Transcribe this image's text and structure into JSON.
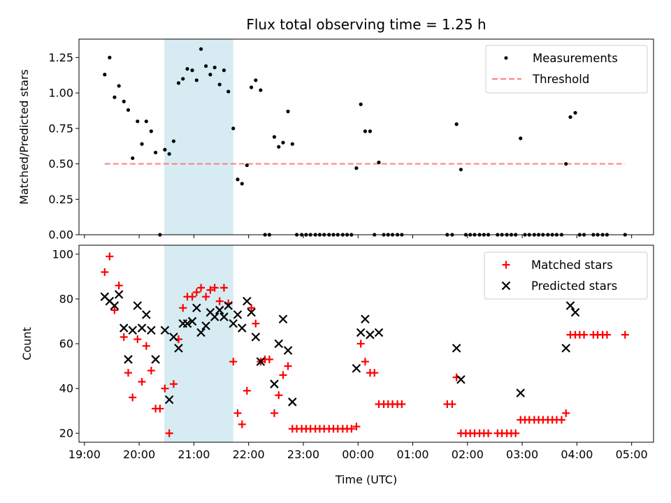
{
  "chart_data": [
    {
      "type": "scatter",
      "title": "Flux total observing time = 1.25 h",
      "xlabel": "",
      "ylabel": "Matched/Predicted stars",
      "xlim": [
        18.9,
        29.4
      ],
      "ylim": [
        0,
        1.38
      ],
      "yticks": [
        0,
        0.25,
        0.5,
        0.75,
        1.0,
        1.25
      ],
      "ytick_labels": [
        "0.00",
        "0.25",
        "0.50",
        "0.75",
        "1.00",
        "1.25"
      ],
      "highlight_span": [
        20.46,
        21.72
      ],
      "highlight_color": "#add8e6",
      "series": [
        {
          "name": "Measurements",
          "color": "#000000",
          "marker": "dot",
          "points": [
            [
              19.37,
              1.13
            ],
            [
              19.46,
              1.25
            ],
            [
              19.55,
              0.97
            ],
            [
              19.63,
              1.05
            ],
            [
              19.72,
              0.94
            ],
            [
              19.8,
              0.88
            ],
            [
              19.88,
              0.54
            ],
            [
              19.97,
              0.8
            ],
            [
              20.05,
              0.64
            ],
            [
              20.13,
              0.8
            ],
            [
              20.22,
              0.73
            ],
            [
              20.3,
              0.58
            ],
            [
              20.38,
              0.0
            ],
            [
              20.47,
              0.6
            ],
            [
              20.55,
              0.57
            ],
            [
              20.63,
              0.66
            ],
            [
              20.72,
              1.07
            ],
            [
              20.8,
              1.1
            ],
            [
              20.88,
              1.17
            ],
            [
              20.97,
              1.16
            ],
            [
              21.05,
              1.09
            ],
            [
              21.13,
              1.31
            ],
            [
              21.22,
              1.19
            ],
            [
              21.3,
              1.13
            ],
            [
              21.38,
              1.18
            ],
            [
              21.47,
              1.06
            ],
            [
              21.55,
              1.16
            ],
            [
              21.63,
              1.01
            ],
            [
              21.72,
              0.75
            ],
            [
              21.8,
              0.39
            ],
            [
              21.88,
              0.36
            ],
            [
              21.97,
              0.49
            ],
            [
              22.05,
              1.04
            ],
            [
              22.13,
              1.09
            ],
            [
              22.22,
              1.02
            ],
            [
              22.3,
              0.0
            ],
            [
              22.38,
              0.0
            ],
            [
              22.47,
              0.69
            ],
            [
              22.55,
              0.62
            ],
            [
              22.63,
              0.65
            ],
            [
              22.72,
              0.87
            ],
            [
              22.8,
              0.64
            ],
            [
              22.88,
              0.0
            ],
            [
              22.97,
              0.0
            ],
            [
              23.05,
              0.0
            ],
            [
              23.13,
              0.0
            ],
            [
              23.22,
              0.0
            ],
            [
              23.3,
              0.0
            ],
            [
              23.38,
              0.0
            ],
            [
              23.47,
              0.0
            ],
            [
              23.55,
              0.0
            ],
            [
              23.63,
              0.0
            ],
            [
              23.72,
              0.0
            ],
            [
              23.8,
              0.0
            ],
            [
              23.88,
              0.0
            ],
            [
              23.97,
              0.47
            ],
            [
              24.05,
              0.92
            ],
            [
              24.13,
              0.73
            ],
            [
              24.22,
              0.73
            ],
            [
              24.3,
              0.0
            ],
            [
              24.38,
              0.51
            ],
            [
              24.47,
              0.0
            ],
            [
              24.55,
              0.0
            ],
            [
              24.63,
              0.0
            ],
            [
              24.72,
              0.0
            ],
            [
              24.8,
              0.0
            ],
            [
              25.63,
              0.0
            ],
            [
              25.72,
              0.0
            ],
            [
              25.8,
              0.78
            ],
            [
              25.88,
              0.46
            ],
            [
              25.97,
              0.0
            ],
            [
              26.05,
              0.0
            ],
            [
              26.13,
              0.0
            ],
            [
              26.22,
              0.0
            ],
            [
              26.3,
              0.0
            ],
            [
              26.38,
              0.0
            ],
            [
              26.55,
              0.0
            ],
            [
              26.63,
              0.0
            ],
            [
              26.72,
              0.0
            ],
            [
              26.8,
              0.0
            ],
            [
              26.88,
              0.0
            ],
            [
              26.97,
              0.68
            ],
            [
              27.05,
              0.0
            ],
            [
              27.13,
              0.0
            ],
            [
              27.22,
              0.0
            ],
            [
              27.3,
              0.0
            ],
            [
              27.38,
              0.0
            ],
            [
              27.47,
              0.0
            ],
            [
              27.55,
              0.0
            ],
            [
              27.63,
              0.0
            ],
            [
              27.72,
              0.0
            ],
            [
              27.8,
              0.5
            ],
            [
              27.88,
              0.83
            ],
            [
              27.97,
              0.86
            ],
            [
              28.05,
              0.0
            ],
            [
              28.13,
              0.0
            ],
            [
              28.3,
              0.0
            ],
            [
              28.38,
              0.0
            ],
            [
              28.47,
              0.0
            ],
            [
              28.55,
              0.0
            ],
            [
              28.88,
              0.0
            ]
          ]
        },
        {
          "name": "Threshold",
          "color": "#ff7f7f",
          "style": "dashed",
          "x": [
            19.37,
            28.88
          ],
          "y": [
            0.5,
            0.5
          ]
        }
      ],
      "legend_position": "top-right"
    },
    {
      "type": "scatter",
      "title": "",
      "xlabel": "Time (UTC)",
      "ylabel": "Count",
      "xlim": [
        18.9,
        29.4
      ],
      "ylim": [
        16,
        104
      ],
      "yticks": [
        20,
        40,
        60,
        80,
        100
      ],
      "ytick_labels": [
        "20",
        "40",
        "60",
        "80",
        "100"
      ],
      "xticks": [
        19,
        20,
        21,
        22,
        23,
        24,
        25,
        26,
        27,
        28,
        29
      ],
      "xtick_labels": [
        "19:00",
        "20:00",
        "21:00",
        "22:00",
        "23:00",
        "00:00",
        "01:00",
        "02:00",
        "03:00",
        "04:00",
        "05:00"
      ],
      "highlight_span": [
        20.46,
        21.72
      ],
      "highlight_color": "#add8e6",
      "series": [
        {
          "name": "Matched stars",
          "color": "#ff0000",
          "marker": "plus",
          "points": [
            [
              19.37,
              92
            ],
            [
              19.46,
              99
            ],
            [
              19.55,
              75
            ],
            [
              19.63,
              86
            ],
            [
              19.72,
              63
            ],
            [
              19.8,
              47
            ],
            [
              19.88,
              36
            ],
            [
              19.97,
              62
            ],
            [
              20.05,
              43
            ],
            [
              20.13,
              59
            ],
            [
              20.22,
              48
            ],
            [
              20.3,
              31
            ],
            [
              20.38,
              31
            ],
            [
              20.47,
              40
            ],
            [
              20.55,
              20
            ],
            [
              20.63,
              42
            ],
            [
              20.72,
              62
            ],
            [
              20.8,
              76
            ],
            [
              20.88,
              81
            ],
            [
              20.97,
              81
            ],
            [
              21.05,
              83
            ],
            [
              21.13,
              85
            ],
            [
              21.22,
              81
            ],
            [
              21.3,
              84
            ],
            [
              21.38,
              85
            ],
            [
              21.47,
              79
            ],
            [
              21.55,
              85
            ],
            [
              21.63,
              78
            ],
            [
              21.72,
              52
            ],
            [
              21.8,
              29
            ],
            [
              21.88,
              24
            ],
            [
              21.97,
              39
            ],
            [
              22.05,
              76
            ],
            [
              22.13,
              69
            ],
            [
              22.22,
              52
            ],
            [
              22.3,
              53
            ],
            [
              22.38,
              53
            ],
            [
              22.47,
              29
            ],
            [
              22.55,
              37
            ],
            [
              22.63,
              46
            ],
            [
              22.72,
              50
            ],
            [
              22.8,
              22
            ],
            [
              22.88,
              22
            ],
            [
              22.97,
              22
            ],
            [
              23.05,
              22
            ],
            [
              23.13,
              22
            ],
            [
              23.22,
              22
            ],
            [
              23.3,
              22
            ],
            [
              23.38,
              22
            ],
            [
              23.47,
              22
            ],
            [
              23.55,
              22
            ],
            [
              23.63,
              22
            ],
            [
              23.72,
              22
            ],
            [
              23.8,
              22
            ],
            [
              23.88,
              22
            ],
            [
              23.97,
              23
            ],
            [
              24.05,
              60
            ],
            [
              24.13,
              52
            ],
            [
              24.22,
              47
            ],
            [
              24.3,
              47
            ],
            [
              24.38,
              33
            ],
            [
              24.47,
              33
            ],
            [
              24.55,
              33
            ],
            [
              24.63,
              33
            ],
            [
              24.72,
              33
            ],
            [
              24.8,
              33
            ],
            [
              25.63,
              33
            ],
            [
              25.72,
              33
            ],
            [
              25.8,
              45
            ],
            [
              25.88,
              20
            ],
            [
              25.97,
              20
            ],
            [
              26.05,
              20
            ],
            [
              26.13,
              20
            ],
            [
              26.22,
              20
            ],
            [
              26.3,
              20
            ],
            [
              26.38,
              20
            ],
            [
              26.55,
              20
            ],
            [
              26.63,
              20
            ],
            [
              26.72,
              20
            ],
            [
              26.8,
              20
            ],
            [
              26.88,
              20
            ],
            [
              26.97,
              26
            ],
            [
              27.05,
              26
            ],
            [
              27.13,
              26
            ],
            [
              27.22,
              26
            ],
            [
              27.3,
              26
            ],
            [
              27.38,
              26
            ],
            [
              27.47,
              26
            ],
            [
              27.55,
              26
            ],
            [
              27.63,
              26
            ],
            [
              27.72,
              26
            ],
            [
              27.8,
              29
            ],
            [
              27.88,
              64
            ],
            [
              27.97,
              64
            ],
            [
              28.05,
              64
            ],
            [
              28.13,
              64
            ],
            [
              28.3,
              64
            ],
            [
              28.38,
              64
            ],
            [
              28.47,
              64
            ],
            [
              28.55,
              64
            ],
            [
              28.88,
              64
            ]
          ]
        },
        {
          "name": "Predicted stars",
          "color": "#000000",
          "marker": "x",
          "points": [
            [
              19.37,
              81
            ],
            [
              19.46,
              79
            ],
            [
              19.55,
              77
            ],
            [
              19.63,
              82
            ],
            [
              19.72,
              67
            ],
            [
              19.8,
              53
            ],
            [
              19.88,
              66
            ],
            [
              19.97,
              77
            ],
            [
              20.05,
              67
            ],
            [
              20.13,
              73
            ],
            [
              20.22,
              66
            ],
            [
              20.3,
              53
            ],
            [
              20.47,
              66
            ],
            [
              20.55,
              35
            ],
            [
              20.63,
              63
            ],
            [
              20.72,
              58
            ],
            [
              20.8,
              69
            ],
            [
              20.88,
              69
            ],
            [
              20.97,
              70
            ],
            [
              21.05,
              76
            ],
            [
              21.13,
              65
            ],
            [
              21.22,
              68
            ],
            [
              21.3,
              74
            ],
            [
              21.38,
              72
            ],
            [
              21.47,
              75
            ],
            [
              21.55,
              72
            ],
            [
              21.63,
              77
            ],
            [
              21.72,
              69
            ],
            [
              21.8,
              73
            ],
            [
              21.88,
              67
            ],
            [
              21.97,
              79
            ],
            [
              22.05,
              74
            ],
            [
              22.13,
              63
            ],
            [
              22.22,
              52
            ],
            [
              22.47,
              42
            ],
            [
              22.55,
              60
            ],
            [
              22.63,
              71
            ],
            [
              22.72,
              57
            ],
            [
              22.8,
              34
            ],
            [
              23.97,
              49
            ],
            [
              24.05,
              65
            ],
            [
              24.13,
              71
            ],
            [
              24.22,
              64
            ],
            [
              24.38,
              65
            ],
            [
              25.8,
              58
            ],
            [
              25.88,
              44
            ],
            [
              26.97,
              38
            ],
            [
              27.8,
              58
            ],
            [
              27.88,
              77
            ],
            [
              27.97,
              74
            ]
          ]
        }
      ],
      "legend_position": "top-right"
    }
  ]
}
